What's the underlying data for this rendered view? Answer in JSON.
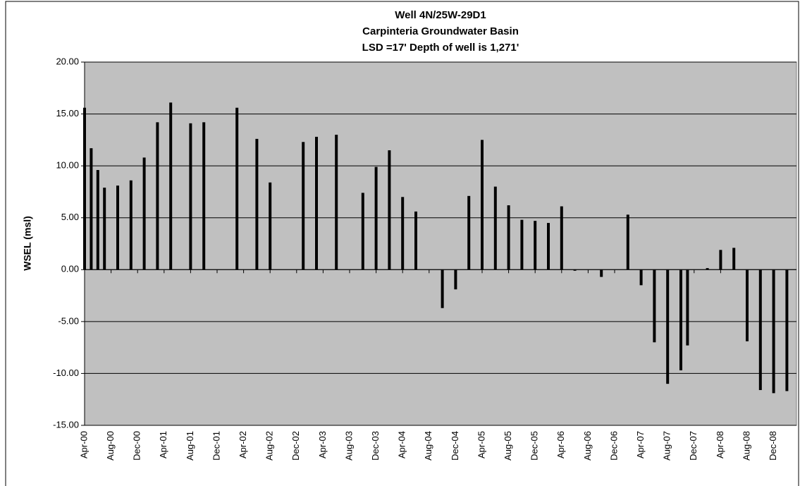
{
  "chart_data": {
    "type": "bar",
    "title": [
      "Well 4N/25W-29D1",
      "Carpinteria Groundwater Basin",
      "LSD =17' Depth of well is 1,271'"
    ],
    "y_label": "WSEL (msl)",
    "color": "#000000",
    "ylim": [
      -15,
      20
    ],
    "yticks": [
      {
        "value": -15,
        "label": "-15.00"
      },
      {
        "value": -10,
        "label": "-10.00"
      },
      {
        "value": -5,
        "label": "-5.00"
      },
      {
        "value": 0,
        "label": "0.00"
      },
      {
        "value": 5,
        "label": "5.00"
      },
      {
        "value": 10,
        "label": "10.00"
      },
      {
        "value": 15,
        "label": "15.00"
      },
      {
        "value": 20,
        "label": "20.00"
      }
    ],
    "grid": true,
    "categories": [
      "Apr-00",
      null,
      null,
      null,
      "Aug-00",
      null,
      null,
      null,
      "Dec-00",
      null,
      null,
      null,
      "Apr-01",
      null,
      null,
      null,
      "Aug-01",
      null,
      null,
      null,
      "Dec-01",
      null,
      null,
      null,
      "Apr-02",
      null,
      null,
      null,
      "Aug-02",
      null,
      null,
      null,
      "Dec-02",
      null,
      null,
      null,
      "Apr-03",
      null,
      null,
      null,
      "Aug-03",
      null,
      null,
      null,
      "Dec-03",
      null,
      null,
      null,
      "Apr-04",
      null,
      null,
      null,
      "Aug-04",
      null,
      null,
      null,
      "Dec-04",
      null,
      null,
      null,
      "Apr-05",
      null,
      null,
      null,
      "Aug-05",
      null,
      null,
      null,
      "Dec-05",
      null,
      null,
      null,
      "Apr-06",
      null,
      null,
      null,
      "Aug-06",
      null,
      null,
      null,
      "Dec-06",
      null,
      null,
      null,
      "Apr-07",
      null,
      null,
      null,
      "Aug-07",
      null,
      null,
      null,
      "Dec-07",
      null,
      null,
      null,
      "Apr-08",
      null,
      null,
      null,
      "Aug-08",
      null,
      null,
      null,
      "Dec-08",
      null,
      null
    ],
    "values": [
      15.6,
      11.7,
      9.6,
      7.9,
      null,
      8.1,
      null,
      8.6,
      null,
      10.8,
      null,
      14.2,
      null,
      16.1,
      null,
      null,
      14.1,
      null,
      14.2,
      null,
      null,
      null,
      null,
      15.6,
      null,
      null,
      12.6,
      null,
      8.4,
      null,
      null,
      null,
      null,
      12.3,
      null,
      12.8,
      null,
      null,
      13.0,
      null,
      null,
      null,
      7.4,
      null,
      9.9,
      null,
      11.5,
      null,
      7.0,
      null,
      5.6,
      null,
      null,
      null,
      -3.7,
      null,
      -1.9,
      null,
      7.1,
      null,
      12.5,
      null,
      8.0,
      null,
      6.2,
      null,
      4.8,
      null,
      4.7,
      null,
      4.5,
      null,
      6.1,
      null,
      -0.1,
      null,
      null,
      null,
      -0.7,
      null,
      null,
      null,
      5.3,
      null,
      -1.5,
      null,
      -7.0,
      null,
      -11.0,
      null,
      -9.7,
      -7.3,
      null,
      null,
      0.15,
      null,
      1.9,
      null,
      2.1,
      null,
      -6.9,
      null,
      -11.6,
      null,
      -11.9,
      null,
      -11.7
    ]
  }
}
